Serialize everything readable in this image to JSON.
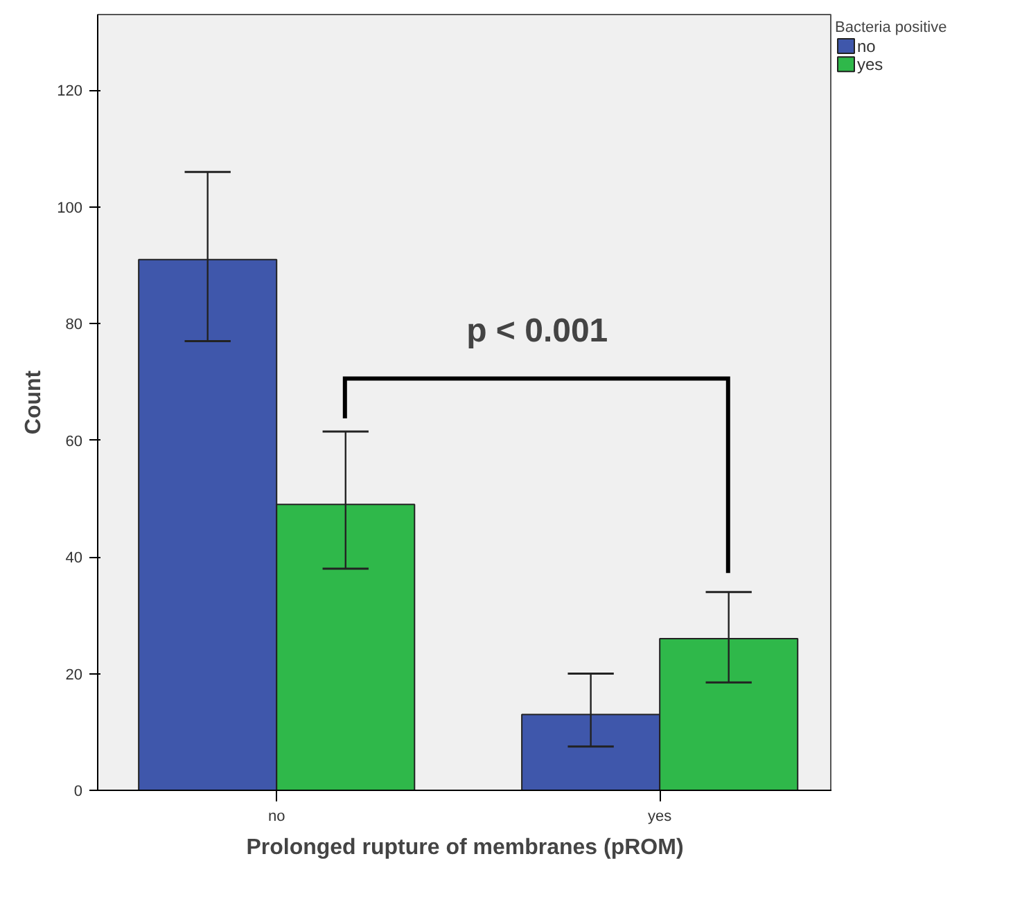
{
  "chart_data": {
    "type": "bar",
    "xlabel": "Prolonged rupture of membranes (pROM)",
    "ylabel": "Count",
    "legend_title": "Bacteria positive",
    "categories": [
      "no",
      "yes"
    ],
    "series": [
      {
        "name": "no",
        "color": "#3f57ab",
        "values": [
          91,
          13
        ],
        "errors": [
          [
            77,
            106
          ],
          [
            7.5,
            20
          ]
        ]
      },
      {
        "name": "yes",
        "color": "#2fb84a",
        "values": [
          49,
          26
        ],
        "errors": [
          [
            38,
            61.5
          ],
          [
            18.5,
            34
          ]
        ]
      }
    ],
    "ylim": [
      0,
      133
    ],
    "yticks": [
      0,
      20,
      40,
      60,
      80,
      100,
      120
    ],
    "grid": false,
    "legend": "top right",
    "annotations": [
      "p < 0.001"
    ]
  }
}
